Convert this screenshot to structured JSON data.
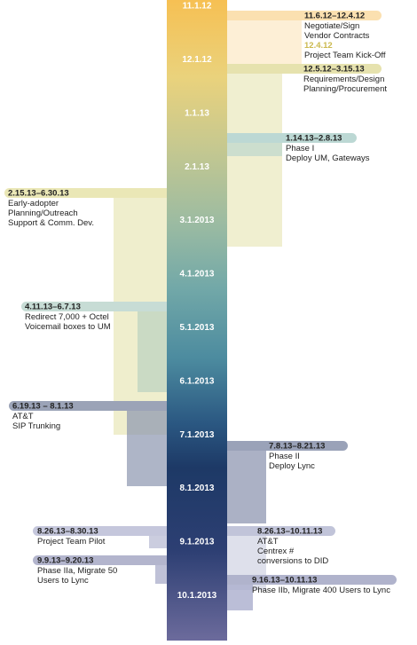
{
  "timeline": {
    "axis_labels": [
      "11.1.12",
      "12.1.12",
      "1.1.13",
      "2.1.13",
      "3.1.2013",
      "4.1.2013",
      "5.1.2013",
      "6.1.2013",
      "7.1.2013",
      "8.1.2013",
      "9.1.2013",
      "10.1.2013"
    ],
    "events": [
      {
        "date": "11.6.12–12.4.12",
        "lines": [
          "Negotiate/Sign",
          "Vendor Contracts"
        ],
        "milestone_date": "12.4.12",
        "milestone": "Project Team Kick-Off"
      },
      {
        "date": "12.5.12–3.15.13",
        "lines": [
          "Requirements/Design",
          "Planning/Procurement"
        ]
      },
      {
        "date": "1.14.13–2.8.13",
        "lines": [
          "Phase I",
          "Deploy UM, Gateways"
        ]
      },
      {
        "date": "2.15.13–6.30.13",
        "lines": [
          "Early-adopter",
          "Planning/Outreach",
          "Support & Comm. Dev."
        ]
      },
      {
        "date": "4.11.13–6.7.13",
        "lines": [
          "Redirect 7,000 + Octel",
          "Voicemail boxes to UM"
        ]
      },
      {
        "date": "6.19.13 – 8.1.13",
        "lines": [
          "AT&T",
          "SIP Trunking"
        ]
      },
      {
        "date": "7.8.13–8.21.13",
        "lines": [
          "Phase II",
          "Deploy Lync"
        ]
      },
      {
        "date": "8.26.13–8.30.13",
        "lines": [
          "Project Team Pilot"
        ]
      },
      {
        "date": "8.26.13–10.11.13",
        "lines": [
          "AT&T",
          "Centrex #",
          "conversions to DID"
        ]
      },
      {
        "date": "9.9.13–9.20.13",
        "lines": [
          "Phase IIa, Migrate 50",
          "Users to Lync"
        ]
      },
      {
        "date": "9.16.13–10.11.13",
        "lines": [
          "Phase IIb, Migrate 400 Users to Lync"
        ]
      }
    ]
  }
}
